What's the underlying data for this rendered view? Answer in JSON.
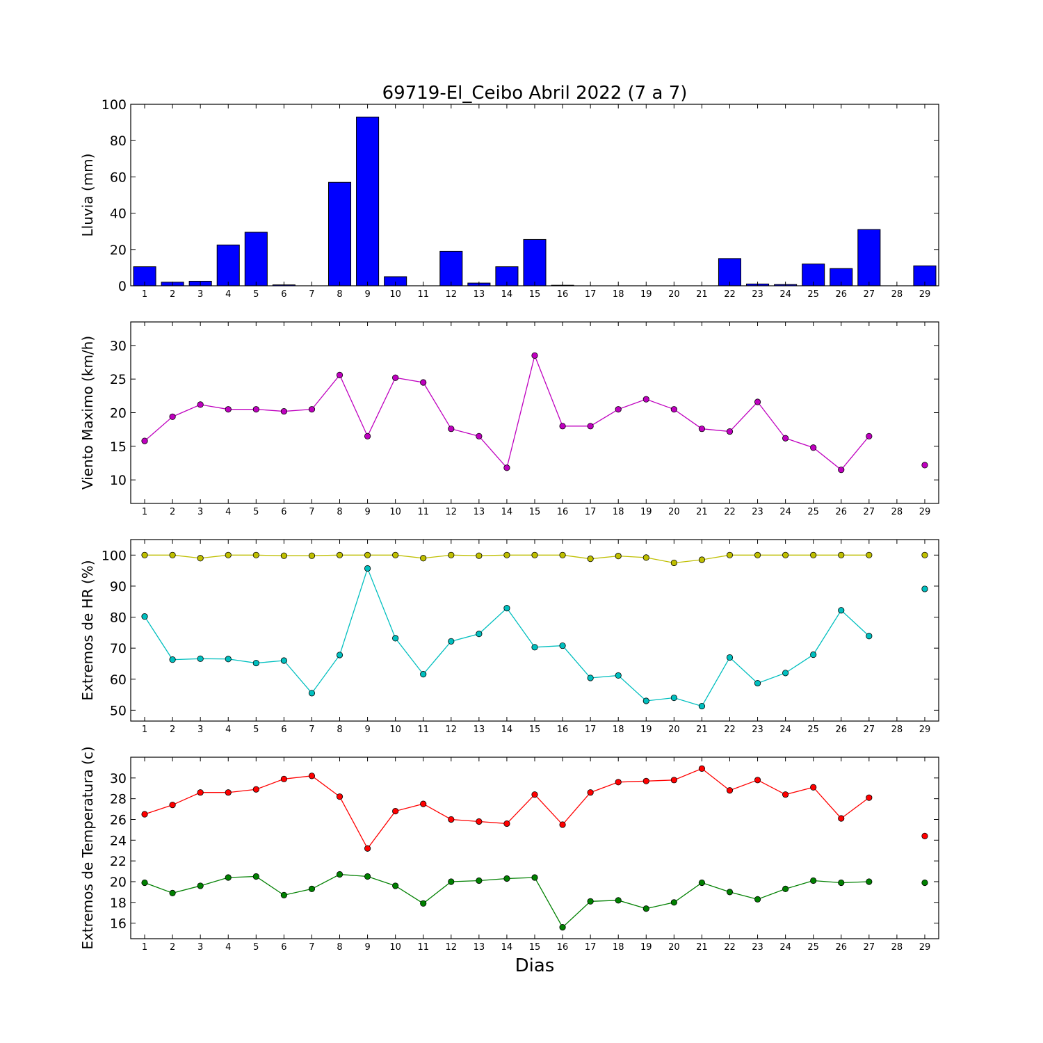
{
  "chart_data": {
    "title": "69719-El_Ceibo Abril 2022  (7 a 7)",
    "xlabel": "Dias",
    "days": [
      1,
      2,
      3,
      4,
      5,
      6,
      7,
      8,
      9,
      10,
      11,
      12,
      13,
      14,
      15,
      16,
      17,
      18,
      19,
      20,
      21,
      22,
      23,
      24,
      25,
      26,
      27,
      28,
      29
    ],
    "panels": [
      {
        "type": "bar",
        "ylabel": "Lluvia (mm)",
        "ylim": [
          0,
          100
        ],
        "yticks": [
          0,
          20,
          40,
          60,
          80,
          100
        ],
        "colors": [
          "#0000ff"
        ],
        "series": [
          {
            "values": [
              10.5,
              2,
              2.5,
              22.5,
              29.5,
              0.5,
              0,
              57,
              93,
              5,
              0,
              19,
              1.5,
              10.5,
              25.5,
              0.3,
              0,
              0,
              0,
              0,
              0,
              15,
              1,
              0.7,
              12,
              9.5,
              31,
              0,
              11
            ]
          }
        ]
      },
      {
        "type": "line",
        "ylabel": "Viento Maximo (km/h)",
        "ylim": [
          6.5,
          33.5
        ],
        "yticks": [
          10,
          15,
          20,
          25,
          30
        ],
        "colors": [
          "#bf00bf"
        ],
        "series": [
          {
            "values": [
              15.8,
              19.4,
              21.2,
              20.5,
              20.5,
              20.2,
              20.5,
              25.6,
              16.5,
              25.2,
              24.5,
              17.6,
              16.5,
              11.8,
              28.5,
              18.0,
              18.0,
              20.5,
              22.0,
              20.5,
              17.6,
              17.2,
              21.6,
              16.2,
              14.8,
              11.5,
              16.5,
              null,
              12.2
            ]
          }
        ]
      },
      {
        "type": "line",
        "ylabel": "Extremos de HR (%)",
        "ylim": [
          46.5,
          105
        ],
        "yticks": [
          50,
          60,
          70,
          80,
          90,
          100
        ],
        "colors": [
          "#bfbf00",
          "#00bfbf"
        ],
        "series": [
          {
            "values": [
              100,
              100,
              99,
              100,
              100,
              99.8,
              99.8,
              100,
              100,
              100,
              99,
              100,
              99.8,
              100,
              100,
              100,
              98.8,
              99.7,
              99.2,
              97.5,
              98.5,
              100,
              100,
              100,
              100,
              100,
              100,
              null,
              100
            ]
          },
          {
            "values": [
              80.2,
              66.3,
              66.6,
              66.5,
              65.2,
              66.0,
              55.5,
              67.8,
              95.7,
              73.2,
              61.6,
              72.2,
              74.6,
              82.9,
              70.3,
              70.8,
              60.4,
              61.2,
              53.0,
              54.0,
              51.3,
              67.0,
              58.7,
              62.0,
              67.9,
              82.2,
              73.9,
              null,
              89.1
            ]
          }
        ]
      },
      {
        "type": "line",
        "ylabel": "Extremos de Temperatura (c)",
        "ylim": [
          14.5,
          32
        ],
        "yticks": [
          16,
          18,
          20,
          22,
          24,
          26,
          28,
          30
        ],
        "colors": [
          "#ff0000",
          "#008000"
        ],
        "series": [
          {
            "values": [
              26.5,
              27.4,
              28.6,
              28.6,
              28.9,
              29.9,
              30.2,
              28.2,
              23.2,
              26.8,
              27.5,
              26.0,
              25.8,
              25.6,
              28.4,
              25.5,
              28.6,
              29.6,
              29.7,
              29.8,
              30.9,
              28.8,
              29.8,
              28.4,
              29.1,
              26.1,
              28.1,
              null,
              24.4
            ]
          },
          {
            "values": [
              19.9,
              18.9,
              19.6,
              20.4,
              20.5,
              18.7,
              19.3,
              20.7,
              20.5,
              19.6,
              17.9,
              20.0,
              20.1,
              20.3,
              20.4,
              15.6,
              18.1,
              18.2,
              17.4,
              18.0,
              19.9,
              19.0,
              18.3,
              19.3,
              20.1,
              19.9,
              20.0,
              null,
              19.9
            ]
          }
        ]
      }
    ]
  }
}
